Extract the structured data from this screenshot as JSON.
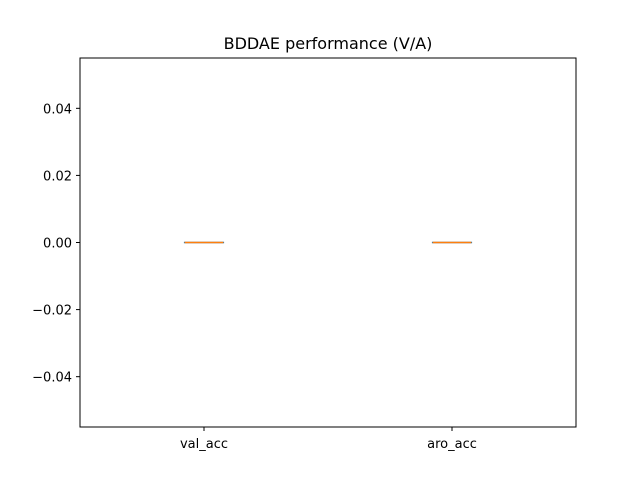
{
  "chart_data": {
    "type": "box",
    "title": "BDDAE performance (V/A)",
    "xlabel": "",
    "ylabel": "",
    "categories": [
      "val_acc",
      "aro_acc"
    ],
    "boxes": [
      {
        "category": "val_acc",
        "min": 0.0,
        "q1": 0.0,
        "median": 0.0,
        "q3": 0.0,
        "max": 0.0
      },
      {
        "category": "aro_acc",
        "min": 0.0,
        "q1": 0.0,
        "median": 0.0,
        "q3": 0.0,
        "max": 0.0
      }
    ],
    "ylim": [
      -0.055,
      0.055
    ],
    "yticks": [
      {
        "value": -0.04,
        "label": "−0.04"
      },
      {
        "value": -0.02,
        "label": "−0.02"
      },
      {
        "value": 0.0,
        "label": "0.00"
      },
      {
        "value": 0.02,
        "label": "0.02"
      },
      {
        "value": 0.04,
        "label": "0.04"
      }
    ],
    "grid": false,
    "legend": "none",
    "colors": {
      "box": "#1f77b4",
      "median": "#ff7f0e",
      "axes": "#000000"
    }
  }
}
